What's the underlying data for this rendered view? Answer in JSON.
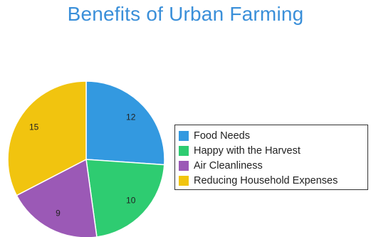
{
  "chart_data": {
    "type": "pie",
    "title": "Benefits of Urban Farming",
    "categories": [
      "Food Needs",
      "Happy with the Harvest",
      "Air Cleanliness",
      "Reducing Household Expenses"
    ],
    "values": [
      12,
      10,
      9,
      15
    ],
    "colors": [
      "#3399e0",
      "#2ecc71",
      "#9b59b6",
      "#f1c40f"
    ],
    "legend_position": "right"
  }
}
